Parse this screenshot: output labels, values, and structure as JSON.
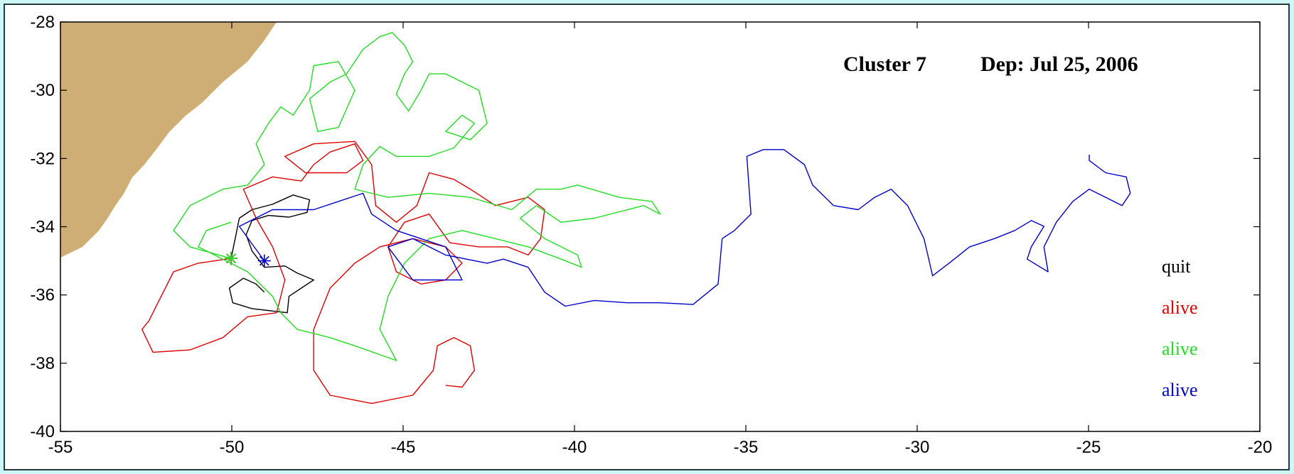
{
  "chart_data": {
    "type": "line",
    "title": "Cluster 7",
    "subtitle": "Dep: Jul 25, 2006",
    "xlim": [
      -55,
      -20
    ],
    "ylim": [
      -40,
      -28
    ],
    "xticks": [
      -55,
      -50,
      -45,
      -40,
      -35,
      -30,
      -25,
      -20
    ],
    "yticks": [
      -40,
      -38,
      -36,
      -34,
      -32,
      -30,
      -28
    ],
    "series": [
      {
        "name": "quit",
        "color": "#000000",
        "x": [
          -50.02,
          -49.9,
          -49.78,
          -49.41,
          -48.81,
          -48.21,
          -47.73,
          -47.8,
          -48.33,
          -48.93,
          -49.41,
          -49.58,
          -49.41,
          -49.05,
          -48.45,
          -48.09,
          -47.61,
          -47.97,
          -48.33,
          -48.38,
          -48.81,
          -49.41,
          -49.97,
          -50.07,
          -49.66,
          -49.29,
          -49.05
        ],
        "values": [
          -34.93,
          -34.35,
          -33.75,
          -33.5,
          -33.34,
          -33.07,
          -33.21,
          -33.58,
          -33.72,
          -33.67,
          -33.82,
          -34.23,
          -34.71,
          -35.19,
          -35.15,
          -35.36,
          -35.56,
          -35.8,
          -36.04,
          -36.52,
          -36.47,
          -36.4,
          -36.23,
          -35.8,
          -35.51,
          -35.68,
          -35.92
        ]
      },
      {
        "name": "alive",
        "color": "#e00000",
        "x": [
          -50.02,
          -50.98,
          -51.7,
          -52.06,
          -52.42,
          -52.62,
          -52.3,
          -51.22,
          -50.26,
          -49.54,
          -48.69,
          -48.45,
          -48.81,
          -49.29,
          -49.66,
          -48.81,
          -47.97,
          -47.61,
          -47.13,
          -46.41,
          -46.17,
          -46.65,
          -47.85,
          -48.45,
          -47.61,
          -46.41,
          -45.92,
          -45.8,
          -45.2,
          -44.6,
          -44.24,
          -43.52,
          -43.04,
          -42.31,
          -41.35,
          -40.87,
          -40.99,
          -41.35,
          -41.95,
          -42.79,
          -43.64,
          -44.24,
          -44.96,
          -45.44,
          -45.2,
          -44.48,
          -43.76,
          -43.28,
          -43.76,
          -44.72,
          -45.68,
          -46.41,
          -47.13,
          -47.61,
          -47.61,
          -47.13,
          -45.92,
          -44.72,
          -44.12,
          -44.0,
          -43.52,
          -43.04,
          -42.92,
          -43.28,
          -43.76
        ],
        "values": [
          -34.93,
          -35.07,
          -35.32,
          -36.04,
          -36.76,
          -37.01,
          -37.68,
          -37.61,
          -37.25,
          -36.64,
          -36.52,
          -35.56,
          -34.59,
          -33.75,
          -32.9,
          -32.54,
          -32.66,
          -32.18,
          -31.81,
          -31.57,
          -32.06,
          -32.42,
          -32.42,
          -31.94,
          -31.57,
          -31.5,
          -32.18,
          -33.38,
          -33.87,
          -33.38,
          -32.42,
          -32.61,
          -32.9,
          -33.38,
          -33.14,
          -33.5,
          -34.35,
          -34.83,
          -34.59,
          -34.59,
          -34.47,
          -33.63,
          -33.87,
          -34.59,
          -35.32,
          -35.68,
          -35.56,
          -35.07,
          -34.59,
          -34.35,
          -34.59,
          -35.07,
          -35.8,
          -37.01,
          -38.21,
          -38.94,
          -39.18,
          -38.94,
          -38.21,
          -37.49,
          -37.25,
          -37.49,
          -38.21,
          -38.7,
          -38.65
        ]
      },
      {
        "name": "alive",
        "color": "#22dd22",
        "x": [
          -50.02,
          -51.22,
          -51.7,
          -51.22,
          -50.26,
          -49.54,
          -49.05,
          -49.29,
          -48.93,
          -48.57,
          -48.21,
          -47.73,
          -47.61,
          -46.89,
          -46.41,
          -46.89,
          -47.49,
          -47.73,
          -47.13,
          -46.65,
          -46.17,
          -45.68,
          -45.32,
          -44.96,
          -44.72,
          -44.96,
          -45.2,
          -44.84,
          -44.48,
          -44.24,
          -43.76,
          -43.28,
          -42.79,
          -42.55,
          -43.04,
          -43.76,
          -43.28,
          -42.92,
          -43.52,
          -44.24,
          -45.2,
          -45.68,
          -46.17,
          -46.41,
          -45.44,
          -44.24,
          -43.04,
          -41.83,
          -41.11,
          -40.39,
          -39.91,
          -38.7,
          -37.74,
          -37.5,
          -37.98,
          -39.42,
          -40.39,
          -41.11,
          -41.59,
          -40.87,
          -39.91,
          -39.79,
          -40.39,
          -41.35,
          -42.31,
          -43.28,
          -44.24,
          -44.96,
          -45.44,
          -45.68,
          -45.2,
          -46.41,
          -47.13,
          -48.09,
          -48.57,
          -48.81,
          -49.54,
          -50.5,
          -50.98,
          -50.74,
          -50.02
        ],
        "values": [
          -34.93,
          -34.59,
          -34.11,
          -33.38,
          -32.9,
          -32.78,
          -32.18,
          -31.57,
          -30.97,
          -30.49,
          -30.73,
          -30.0,
          -29.28,
          -29.16,
          -30.0,
          -31.09,
          -31.21,
          -30.25,
          -29.76,
          -29.52,
          -28.8,
          -28.43,
          -28.31,
          -28.68,
          -29.16,
          -29.52,
          -30.12,
          -30.61,
          -30.0,
          -29.52,
          -29.52,
          -29.76,
          -30.0,
          -30.97,
          -31.45,
          -31.21,
          -30.73,
          -30.97,
          -31.69,
          -31.94,
          -31.94,
          -31.65,
          -32.18,
          -32.9,
          -33.14,
          -33.02,
          -33.14,
          -33.5,
          -32.9,
          -32.9,
          -32.78,
          -33.14,
          -33.26,
          -33.63,
          -33.38,
          -33.75,
          -33.87,
          -33.38,
          -33.75,
          -34.35,
          -34.83,
          -35.19,
          -34.95,
          -34.59,
          -34.35,
          -34.11,
          -34.35,
          -35.07,
          -36.04,
          -37.01,
          -37.92,
          -37.49,
          -37.25,
          -37.01,
          -36.52,
          -36.04,
          -35.32,
          -34.83,
          -34.59,
          -34.11,
          -33.87
        ]
      },
      {
        "name": "alive",
        "color": "#0000cc",
        "x": [
          -49.05,
          -49.78,
          -48.81,
          -47.61,
          -46.89,
          -46.17,
          -45.92,
          -45.2,
          -43.76,
          -43.28,
          -44.72,
          -45.44,
          -44.72,
          -43.76,
          -42.55,
          -42.07,
          -41.35,
          -40.87,
          -40.27,
          -39.42,
          -38.46,
          -37.5,
          -36.54,
          -35.81,
          -35.69,
          -35.33,
          -34.85,
          -34.97,
          -34.49,
          -33.89,
          -33.29,
          -33.05,
          -32.44,
          -31.72,
          -31.24,
          -30.76,
          -30.28,
          -29.8,
          -29.55,
          -29.07,
          -28.47,
          -27.75,
          -27.15,
          -26.67,
          -26.3,
          -26.67,
          -26.79,
          -26.18,
          -26.3,
          -25.94,
          -25.46,
          -24.98,
          -24.5,
          -24.02,
          -23.78,
          -23.9,
          -24.5,
          -24.98,
          -24.98
        ],
        "values": [
          -35.0,
          -33.99,
          -33.5,
          -33.5,
          -33.26,
          -33.02,
          -33.63,
          -34.11,
          -34.59,
          -35.56,
          -35.56,
          -34.59,
          -34.35,
          -34.83,
          -35.07,
          -34.95,
          -35.19,
          -35.92,
          -36.33,
          -36.16,
          -36.23,
          -36.23,
          -36.28,
          -35.68,
          -34.35,
          -34.11,
          -33.63,
          -31.94,
          -31.74,
          -31.74,
          -32.18,
          -32.78,
          -33.38,
          -33.5,
          -33.14,
          -32.9,
          -33.38,
          -34.35,
          -35.44,
          -35.07,
          -34.59,
          -34.35,
          -34.11,
          -33.82,
          -33.99,
          -34.59,
          -34.95,
          -35.32,
          -34.59,
          -33.87,
          -33.26,
          -32.9,
          -33.14,
          -33.38,
          -33.02,
          -32.54,
          -32.42,
          -32.06,
          -31.89
        ]
      }
    ]
  }
}
